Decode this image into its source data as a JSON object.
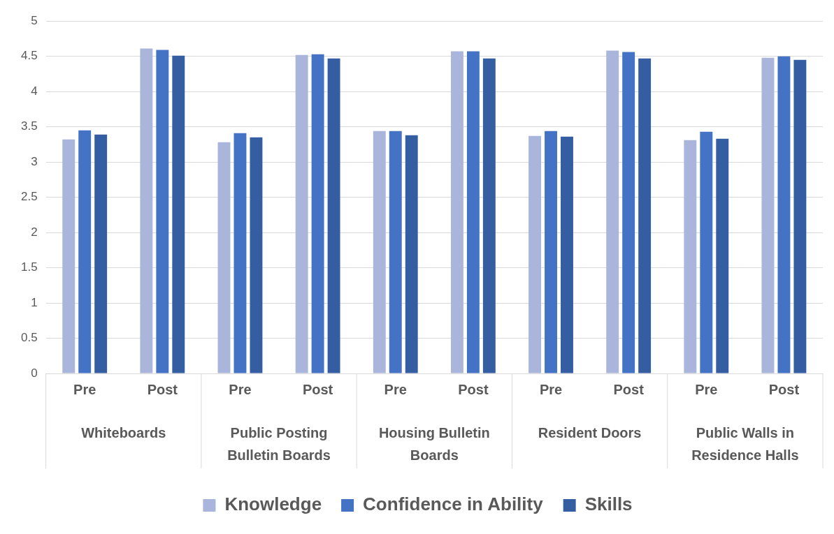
{
  "chart_data": {
    "type": "bar",
    "categories": [
      "Pre",
      "Post",
      "Pre",
      "Post",
      "Pre",
      "Post",
      "Pre",
      "Post",
      "Pre",
      "Post"
    ],
    "series": [
      {
        "name": "Knowledge",
        "color": "#a9b5da",
        "values": [
          3.32,
          4.61,
          3.28,
          4.52,
          3.44,
          4.57,
          3.37,
          4.58,
          3.31,
          4.48
        ]
      },
      {
        "name": "Confidence in Ability",
        "color": "#4472c4",
        "values": [
          3.45,
          4.59,
          3.41,
          4.53,
          3.44,
          4.57,
          3.44,
          4.56,
          3.43,
          4.5
        ]
      },
      {
        "name": "Skills",
        "color": "#355ea2",
        "values": [
          3.39,
          4.51,
          3.35,
          4.47,
          3.38,
          4.47,
          3.36,
          4.47,
          3.33,
          4.45
        ]
      }
    ],
    "annotations": [
      "Whiteboards",
      "Public Posting Bulletin Boards",
      "Housing Bulletin Boards",
      "Resident Doors",
      "Public Walls in Residence Halls"
    ],
    "ylim": [
      0,
      5
    ],
    "yticks": [
      0,
      0.5,
      1,
      1.5,
      2,
      2.5,
      3,
      3.5,
      4,
      4.5,
      5
    ],
    "grid": "y",
    "legend": "bottom"
  }
}
